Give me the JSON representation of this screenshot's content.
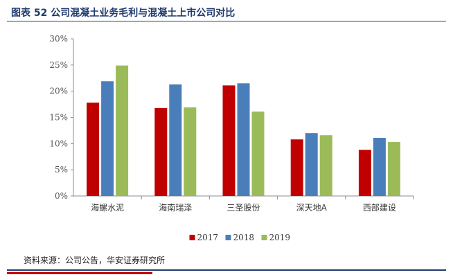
{
  "title": "图表 52  公司混凝土业务毛利与混凝土上市公司对比",
  "source": "资料来源：公司公告，华安证券研究所",
  "chart_data": {
    "type": "bar",
    "categories": [
      "海螺水泥",
      "海南瑞泽",
      "三圣股份",
      "深天地A",
      "西部建设"
    ],
    "series": [
      {
        "name": "2017",
        "color": "#c00000",
        "values": [
          17.8,
          16.8,
          21.1,
          10.8,
          8.8
        ]
      },
      {
        "name": "2018",
        "color": "#4a7ebb",
        "values": [
          21.9,
          21.3,
          21.5,
          12.0,
          11.1
        ]
      },
      {
        "name": "2019",
        "color": "#9bbb59",
        "values": [
          24.9,
          16.9,
          16.1,
          11.6,
          10.3
        ]
      }
    ],
    "ylim": [
      0,
      30
    ],
    "yticks": [
      "0%",
      "5%",
      "10%",
      "15%",
      "20%",
      "25%",
      "30%"
    ],
    "grid": false,
    "legend": "bottom"
  }
}
